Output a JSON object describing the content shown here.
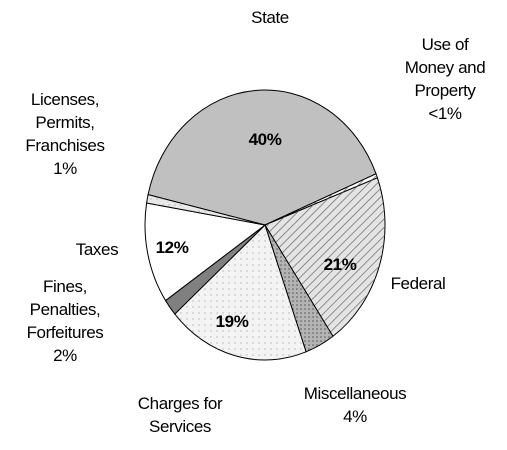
{
  "chart_data": {
    "type": "pie",
    "categories": [
      "State",
      "Use of Money and Property",
      "Federal",
      "Miscellaneous",
      "Charges for Services",
      "Fines, Penalties, Forfeitures",
      "Taxes",
      "Licenses, Permits, Franchises"
    ],
    "values": [
      40,
      0.5,
      21,
      4,
      19,
      2,
      12,
      1
    ],
    "value_labels": [
      "40%",
      "<1%",
      "21%",
      "4%",
      "19%",
      "2%",
      "12%",
      "1%"
    ],
    "colors": [
      "#c0c0c0",
      "#ffffff",
      "#e4e4e4",
      "#b4b4b4",
      "#f3f3f3",
      "#808080",
      "#ffffff",
      "#e8e8e8"
    ]
  }
}
